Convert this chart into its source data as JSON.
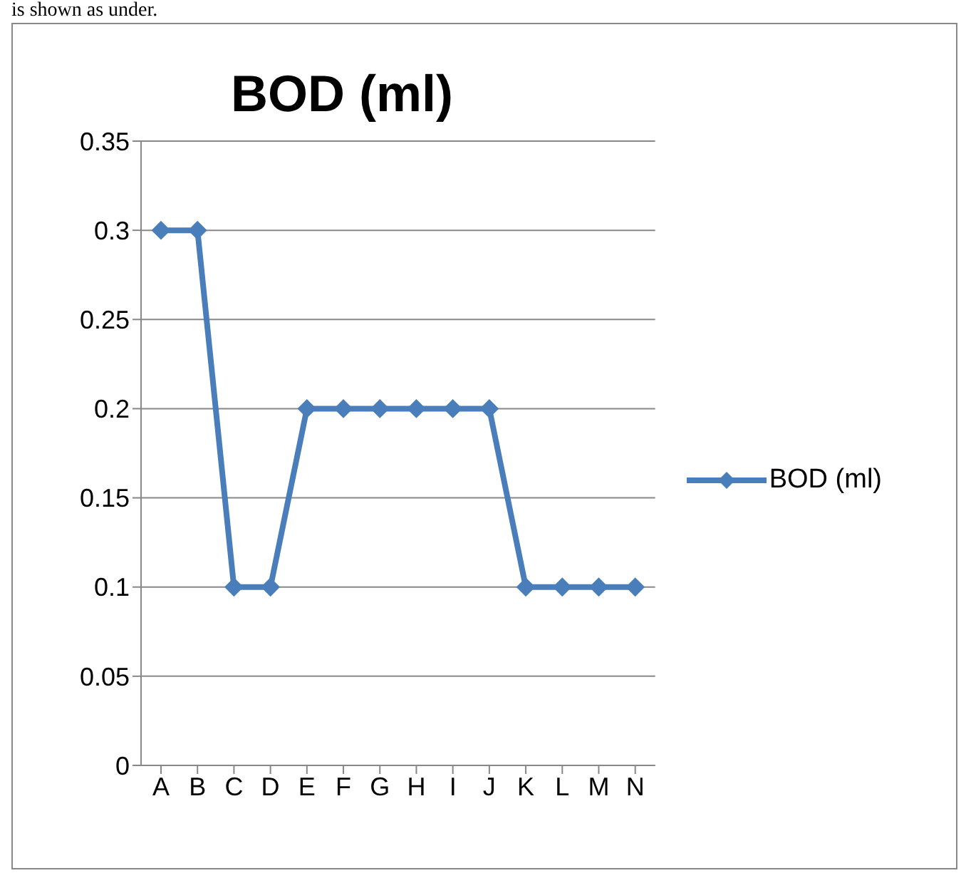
{
  "chart_data": {
    "type": "line",
    "title": "BOD (ml)",
    "annotations": [
      "is shown as under."
    ],
    "categories": [
      "A",
      "B",
      "C",
      "D",
      "E",
      "F",
      "G",
      "H",
      "I",
      "J",
      "K",
      "L",
      "M",
      "N"
    ],
    "series": [
      {
        "name": "BOD (ml)",
        "color": "#4a7ebb",
        "values": [
          0.3,
          0.3,
          0.1,
          0.1,
          0.2,
          0.2,
          0.2,
          0.2,
          0.2,
          0.2,
          0.1,
          0.1,
          0.1,
          0.1
        ]
      }
    ],
    "ylim": [
      0,
      0.35
    ],
    "yticks": [
      0,
      0.05,
      0.1,
      0.15,
      0.2,
      0.25,
      0.3,
      0.35
    ],
    "grid": "y",
    "legend": "right",
    "marker": "diamond",
    "line_style": "solid"
  }
}
